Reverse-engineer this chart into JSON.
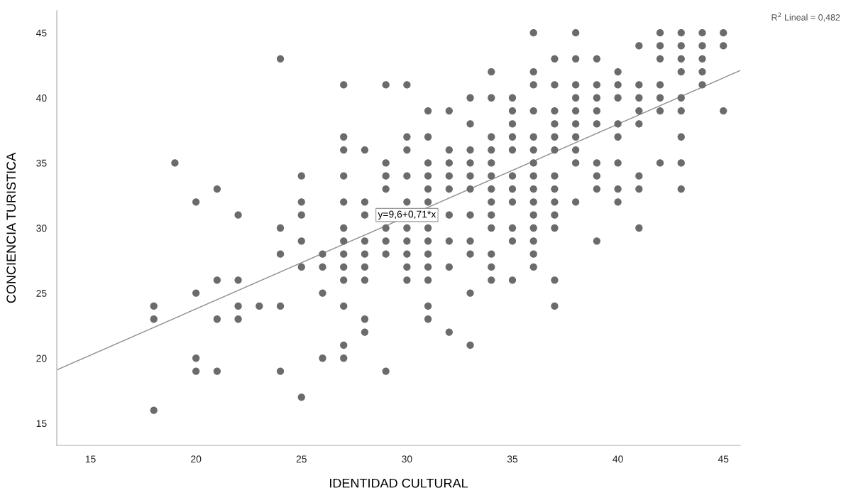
{
  "chart_data": {
    "type": "scatter",
    "xlabel": "IDENTIDAD CULTURAL",
    "ylabel": "CONCIENCIA TURISTICA",
    "xlim": [
      13.4,
      45.8
    ],
    "ylim": [
      13.3,
      46.7
    ],
    "xticks": [
      15,
      20,
      25,
      30,
      35,
      40,
      45
    ],
    "yticks": [
      15,
      20,
      25,
      30,
      35,
      40,
      45
    ],
    "grid": false,
    "legend": false,
    "marker": "circle",
    "annotations": [
      {
        "text": "y=9,6+0,71*x",
        "x": 30,
        "y": 31
      },
      "R$^{2}$ Lineal = 0,482"
    ],
    "series": [
      {
        "color": "#6b6b6b",
        "x": [
          18,
          18,
          18,
          19,
          20,
          20,
          20,
          20,
          21,
          21,
          21,
          21,
          22,
          22,
          22,
          22,
          23,
          24,
          24,
          24,
          24,
          24,
          25,
          25,
          25,
          25,
          25,
          25,
          26,
          26,
          26,
          26,
          27,
          27,
          27,
          27,
          27,
          27,
          27,
          27,
          27,
          27,
          27,
          27,
          27,
          28,
          28,
          28,
          28,
          28,
          28,
          28,
          28,
          28,
          29,
          29,
          29,
          29,
          29,
          29,
          29,
          29,
          30,
          30,
          30,
          30,
          30,
          30,
          30,
          30,
          30,
          30,
          31,
          31,
          31,
          31,
          31,
          31,
          31,
          31,
          31,
          31,
          31,
          31,
          31,
          32,
          32,
          32,
          32,
          32,
          32,
          32,
          32,
          32,
          33,
          33,
          33,
          33,
          33,
          33,
          33,
          33,
          33,
          33,
          33,
          34,
          34,
          34,
          34,
          34,
          34,
          34,
          34,
          34,
          34,
          34,
          34,
          34,
          35,
          35,
          35,
          35,
          35,
          35,
          35,
          35,
          35,
          35,
          35,
          36,
          36,
          36,
          36,
          36,
          36,
          36,
          36,
          36,
          36,
          36,
          36,
          36,
          36,
          36,
          37,
          37,
          37,
          37,
          37,
          37,
          37,
          37,
          37,
          37,
          37,
          37,
          37,
          38,
          38,
          38,
          38,
          38,
          38,
          38,
          38,
          38,
          38,
          39,
          39,
          39,
          39,
          39,
          39,
          39,
          39,
          39,
          40,
          40,
          40,
          40,
          40,
          40,
          40,
          40,
          41,
          41,
          41,
          41,
          41,
          41,
          41,
          41,
          42,
          42,
          42,
          42,
          42,
          42,
          42,
          43,
          43,
          43,
          43,
          43,
          43,
          43,
          43,
          43,
          44,
          44,
          44,
          44,
          44,
          45,
          45,
          45
        ],
        "values": [
          24,
          23,
          16,
          35,
          32,
          25,
          20,
          19,
          33,
          26,
          23,
          19,
          31,
          26,
          24,
          23,
          24,
          43,
          30,
          28,
          24,
          19,
          34,
          32,
          31,
          29,
          27,
          17,
          28,
          27,
          25,
          20,
          41,
          37,
          36,
          34,
          32,
          30,
          29,
          28,
          27,
          26,
          24,
          21,
          20,
          36,
          32,
          31,
          29,
          28,
          27,
          26,
          23,
          22,
          41,
          35,
          34,
          33,
          30,
          29,
          28,
          19,
          41,
          37,
          36,
          34,
          32,
          30,
          29,
          28,
          27,
          26,
          39,
          37,
          35,
          34,
          33,
          32,
          30,
          29,
          28,
          27,
          26,
          24,
          23,
          39,
          36,
          35,
          34,
          33,
          31,
          29,
          27,
          22,
          40,
          38,
          36,
          35,
          34,
          33,
          31,
          29,
          28,
          25,
          21,
          42,
          40,
          37,
          36,
          35,
          34,
          33,
          32,
          31,
          30,
          28,
          27,
          26,
          40,
          39,
          38,
          37,
          36,
          34,
          33,
          32,
          30,
          29,
          26,
          45,
          42,
          41,
          39,
          37,
          36,
          35,
          34,
          33,
          32,
          31,
          30,
          29,
          28,
          27,
          43,
          41,
          39,
          38,
          37,
          36,
          34,
          33,
          32,
          31,
          30,
          26,
          24,
          45,
          43,
          41,
          40,
          39,
          38,
          37,
          36,
          35,
          32,
          43,
          41,
          40,
          39,
          38,
          35,
          34,
          33,
          29,
          42,
          41,
          40,
          38,
          37,
          35,
          33,
          32,
          44,
          41,
          40,
          39,
          38,
          34,
          33,
          30,
          45,
          44,
          43,
          41,
          40,
          39,
          35,
          45,
          44,
          43,
          42,
          40,
          39,
          37,
          35,
          33,
          45,
          44,
          43,
          42,
          41,
          45,
          44,
          39
        ]
      },
      {
        "type": "line",
        "color": "#8c8c8c",
        "x": [
          13.4,
          45.8
        ],
        "values": [
          19.1,
          42.1
        ],
        "marker": "none"
      }
    ]
  }
}
